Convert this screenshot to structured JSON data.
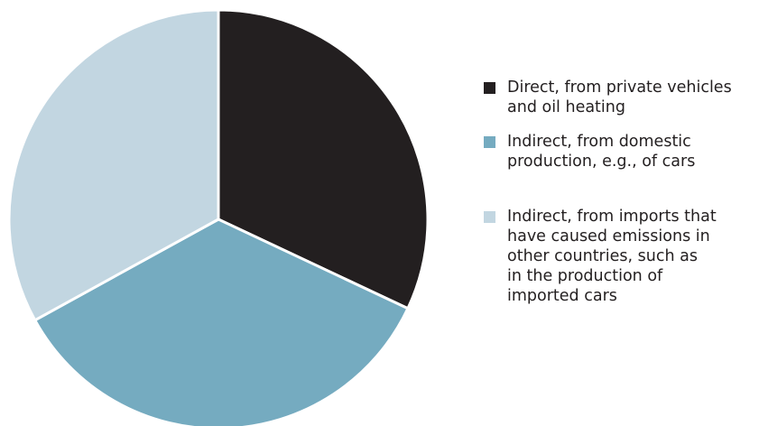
{
  "chart_data": {
    "type": "pie",
    "start_angle_deg": 0,
    "direction": "clockwise",
    "slices": [
      {
        "label": "Direct, from private vehicles\nand oil heating",
        "value": 32,
        "color": "#231f20"
      },
      {
        "label": "Indirect, from domestic\nproduction, e.g., of cars",
        "value": 35,
        "color": "#75abc0"
      },
      {
        "label": "Indirect, from imports that\nhave caused emissions in\nother countries, such as\nin the production of\nimported cars",
        "value": 33,
        "color": "#c2d6e1"
      }
    ],
    "legend_position": "right"
  }
}
